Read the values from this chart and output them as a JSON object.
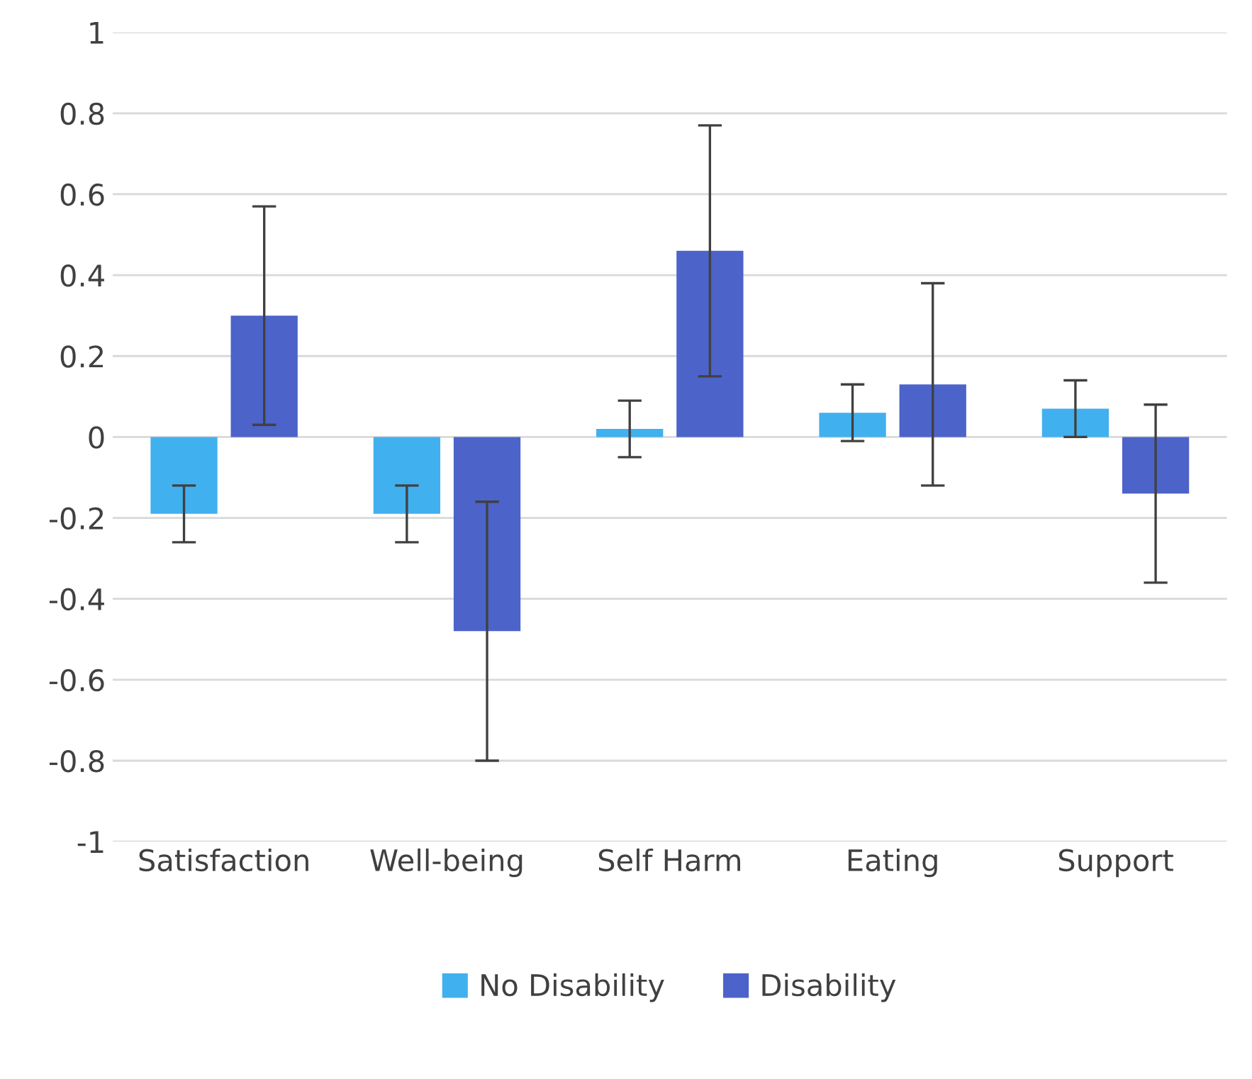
{
  "chart_data": {
    "type": "bar",
    "categories": [
      "Satisfaction",
      "Well-being",
      "Self Harm",
      "Eating",
      "Support"
    ],
    "series": [
      {
        "name": "No Disability",
        "color": "#41b0ee",
        "values": [
          -0.19,
          -0.19,
          0.02,
          0.06,
          0.07
        ],
        "errors": [
          0.07,
          0.07,
          0.07,
          0.07,
          0.07
        ]
      },
      {
        "name": "Disability",
        "color": "#4c63c9",
        "values": [
          0.3,
          -0.48,
          0.46,
          0.13,
          -0.14
        ],
        "errors": [
          0.27,
          0.32,
          0.31,
          0.25,
          0.22
        ]
      }
    ],
    "ylim": [
      -1,
      1
    ],
    "yticks": [
      -1,
      -0.8,
      -0.6,
      -0.4,
      -0.2,
      0,
      0.2,
      0.4,
      0.6,
      0.8,
      1
    ],
    "grid": "y",
    "legend": "bottom"
  }
}
